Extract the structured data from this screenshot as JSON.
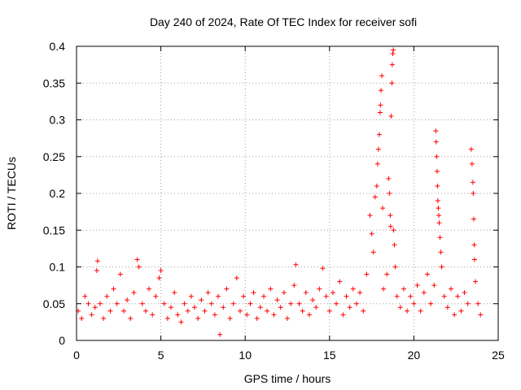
{
  "chart_data": {
    "type": "scatter",
    "title": "Day 240 of 2024, Rate Of TEC Index for receiver sofi",
    "xlabel": "GPS time / hours",
    "ylabel": "ROTI / TECUs",
    "xlim": [
      0,
      25
    ],
    "ylim": [
      0,
      0.4
    ],
    "xticks": [
      0,
      5,
      10,
      15,
      20,
      25
    ],
    "xtick_labels": [
      "0",
      "5",
      "10",
      "15",
      "20",
      "25"
    ],
    "yticks": [
      0,
      0.05,
      0.1,
      0.15,
      0.2,
      0.25,
      0.3,
      0.35,
      0.4
    ],
    "ytick_labels": [
      "0",
      "0.05",
      "0.1",
      "0.15",
      "0.2",
      "0.25",
      "0.3",
      "0.35",
      "0.4"
    ],
    "grid": true,
    "marker": "+",
    "marker_color": "#ff0000",
    "series": [
      {
        "name": "ROTI",
        "points": [
          [
            0.1,
            0.04
          ],
          [
            0.3,
            0.03
          ],
          [
            0.5,
            0.06
          ],
          [
            0.7,
            0.05
          ],
          [
            0.9,
            0.035
          ],
          [
            1.1,
            0.045
          ],
          [
            1.2,
            0.095
          ],
          [
            1.25,
            0.108
          ],
          [
            1.4,
            0.05
          ],
          [
            1.6,
            0.03
          ],
          [
            1.8,
            0.06
          ],
          [
            2.0,
            0.04
          ],
          [
            2.2,
            0.07
          ],
          [
            2.4,
            0.05
          ],
          [
            2.6,
            0.09
          ],
          [
            2.8,
            0.04
          ],
          [
            3.0,
            0.055
          ],
          [
            3.2,
            0.03
          ],
          [
            3.4,
            0.065
          ],
          [
            3.6,
            0.11
          ],
          [
            3.7,
            0.1
          ],
          [
            3.9,
            0.05
          ],
          [
            4.1,
            0.04
          ],
          [
            4.3,
            0.07
          ],
          [
            4.5,
            0.035
          ],
          [
            4.7,
            0.06
          ],
          [
            4.9,
            0.085
          ],
          [
            5.0,
            0.095
          ],
          [
            5.2,
            0.05
          ],
          [
            5.4,
            0.03
          ],
          [
            5.6,
            0.045
          ],
          [
            5.8,
            0.065
          ],
          [
            6.0,
            0.035
          ],
          [
            6.2,
            0.025
          ],
          [
            6.4,
            0.05
          ],
          [
            6.6,
            0.04
          ],
          [
            6.8,
            0.06
          ],
          [
            7.0,
            0.045
          ],
          [
            7.2,
            0.03
          ],
          [
            7.4,
            0.055
          ],
          [
            7.6,
            0.04
          ],
          [
            7.8,
            0.065
          ],
          [
            8.0,
            0.05
          ],
          [
            8.2,
            0.035
          ],
          [
            8.4,
            0.06
          ],
          [
            8.5,
            0.008
          ],
          [
            8.7,
            0.045
          ],
          [
            8.9,
            0.07
          ],
          [
            9.1,
            0.03
          ],
          [
            9.3,
            0.05
          ],
          [
            9.5,
            0.085
          ],
          [
            9.7,
            0.04
          ],
          [
            9.9,
            0.06
          ],
          [
            10.1,
            0.035
          ],
          [
            10.3,
            0.05
          ],
          [
            10.5,
            0.065
          ],
          [
            10.7,
            0.03
          ],
          [
            10.9,
            0.045
          ],
          [
            11.1,
            0.06
          ],
          [
            11.3,
            0.04
          ],
          [
            11.5,
            0.07
          ],
          [
            11.7,
            0.035
          ],
          [
            11.9,
            0.055
          ],
          [
            12.1,
            0.045
          ],
          [
            12.3,
            0.065
          ],
          [
            12.5,
            0.03
          ],
          [
            12.7,
            0.05
          ],
          [
            12.9,
            0.075
          ],
          [
            13.0,
            0.103
          ],
          [
            13.2,
            0.05
          ],
          [
            13.4,
            0.04
          ],
          [
            13.6,
            0.065
          ],
          [
            13.8,
            0.035
          ],
          [
            14.0,
            0.055
          ],
          [
            14.2,
            0.045
          ],
          [
            14.4,
            0.07
          ],
          [
            14.6,
            0.098
          ],
          [
            14.8,
            0.06
          ],
          [
            15.0,
            0.04
          ],
          [
            15.2,
            0.065
          ],
          [
            15.4,
            0.05
          ],
          [
            15.6,
            0.08
          ],
          [
            15.8,
            0.035
          ],
          [
            16.0,
            0.06
          ],
          [
            16.2,
            0.045
          ],
          [
            16.4,
            0.07
          ],
          [
            16.6,
            0.05
          ],
          [
            16.8,
            0.065
          ],
          [
            17.0,
            0.04
          ],
          [
            17.2,
            0.09
          ],
          [
            17.4,
            0.17
          ],
          [
            17.5,
            0.145
          ],
          [
            17.6,
            0.12
          ],
          [
            17.7,
            0.195
          ],
          [
            17.8,
            0.21
          ],
          [
            17.85,
            0.24
          ],
          [
            17.9,
            0.26
          ],
          [
            17.95,
            0.28
          ],
          [
            18.0,
            0.31
          ],
          [
            18.02,
            0.32
          ],
          [
            18.05,
            0.34
          ],
          [
            18.1,
            0.36
          ],
          [
            18.15,
            0.18
          ],
          [
            18.2,
            0.07
          ],
          [
            18.4,
            0.09
          ],
          [
            18.5,
            0.22
          ],
          [
            18.55,
            0.2
          ],
          [
            18.6,
            0.17
          ],
          [
            18.62,
            0.155
          ],
          [
            18.65,
            0.305
          ],
          [
            18.7,
            0.35
          ],
          [
            18.72,
            0.375
          ],
          [
            18.75,
            0.39
          ],
          [
            18.78,
            0.395
          ],
          [
            18.8,
            0.15
          ],
          [
            18.85,
            0.13
          ],
          [
            18.9,
            0.1
          ],
          [
            19.0,
            0.06
          ],
          [
            19.2,
            0.045
          ],
          [
            19.4,
            0.07
          ],
          [
            19.6,
            0.04
          ],
          [
            19.8,
            0.06
          ],
          [
            20.0,
            0.05
          ],
          [
            20.2,
            0.075
          ],
          [
            20.4,
            0.04
          ],
          [
            20.6,
            0.065
          ],
          [
            20.8,
            0.09
          ],
          [
            21.0,
            0.05
          ],
          [
            21.2,
            0.075
          ],
          [
            21.3,
            0.285
          ],
          [
            21.32,
            0.27
          ],
          [
            21.35,
            0.25
          ],
          [
            21.38,
            0.23
          ],
          [
            21.4,
            0.21
          ],
          [
            21.42,
            0.19
          ],
          [
            21.45,
            0.18
          ],
          [
            21.48,
            0.17
          ],
          [
            21.5,
            0.16
          ],
          [
            21.55,
            0.14
          ],
          [
            21.6,
            0.12
          ],
          [
            21.65,
            0.1
          ],
          [
            21.8,
            0.06
          ],
          [
            22.0,
            0.045
          ],
          [
            22.2,
            0.07
          ],
          [
            22.4,
            0.035
          ],
          [
            22.6,
            0.06
          ],
          [
            22.8,
            0.04
          ],
          [
            23.0,
            0.065
          ],
          [
            23.2,
            0.05
          ],
          [
            23.4,
            0.26
          ],
          [
            23.45,
            0.24
          ],
          [
            23.5,
            0.215
          ],
          [
            23.52,
            0.2
          ],
          [
            23.55,
            0.165
          ],
          [
            23.58,
            0.13
          ],
          [
            23.6,
            0.11
          ],
          [
            23.65,
            0.08
          ],
          [
            23.8,
            0.05
          ],
          [
            23.95,
            0.035
          ]
        ]
      }
    ]
  }
}
